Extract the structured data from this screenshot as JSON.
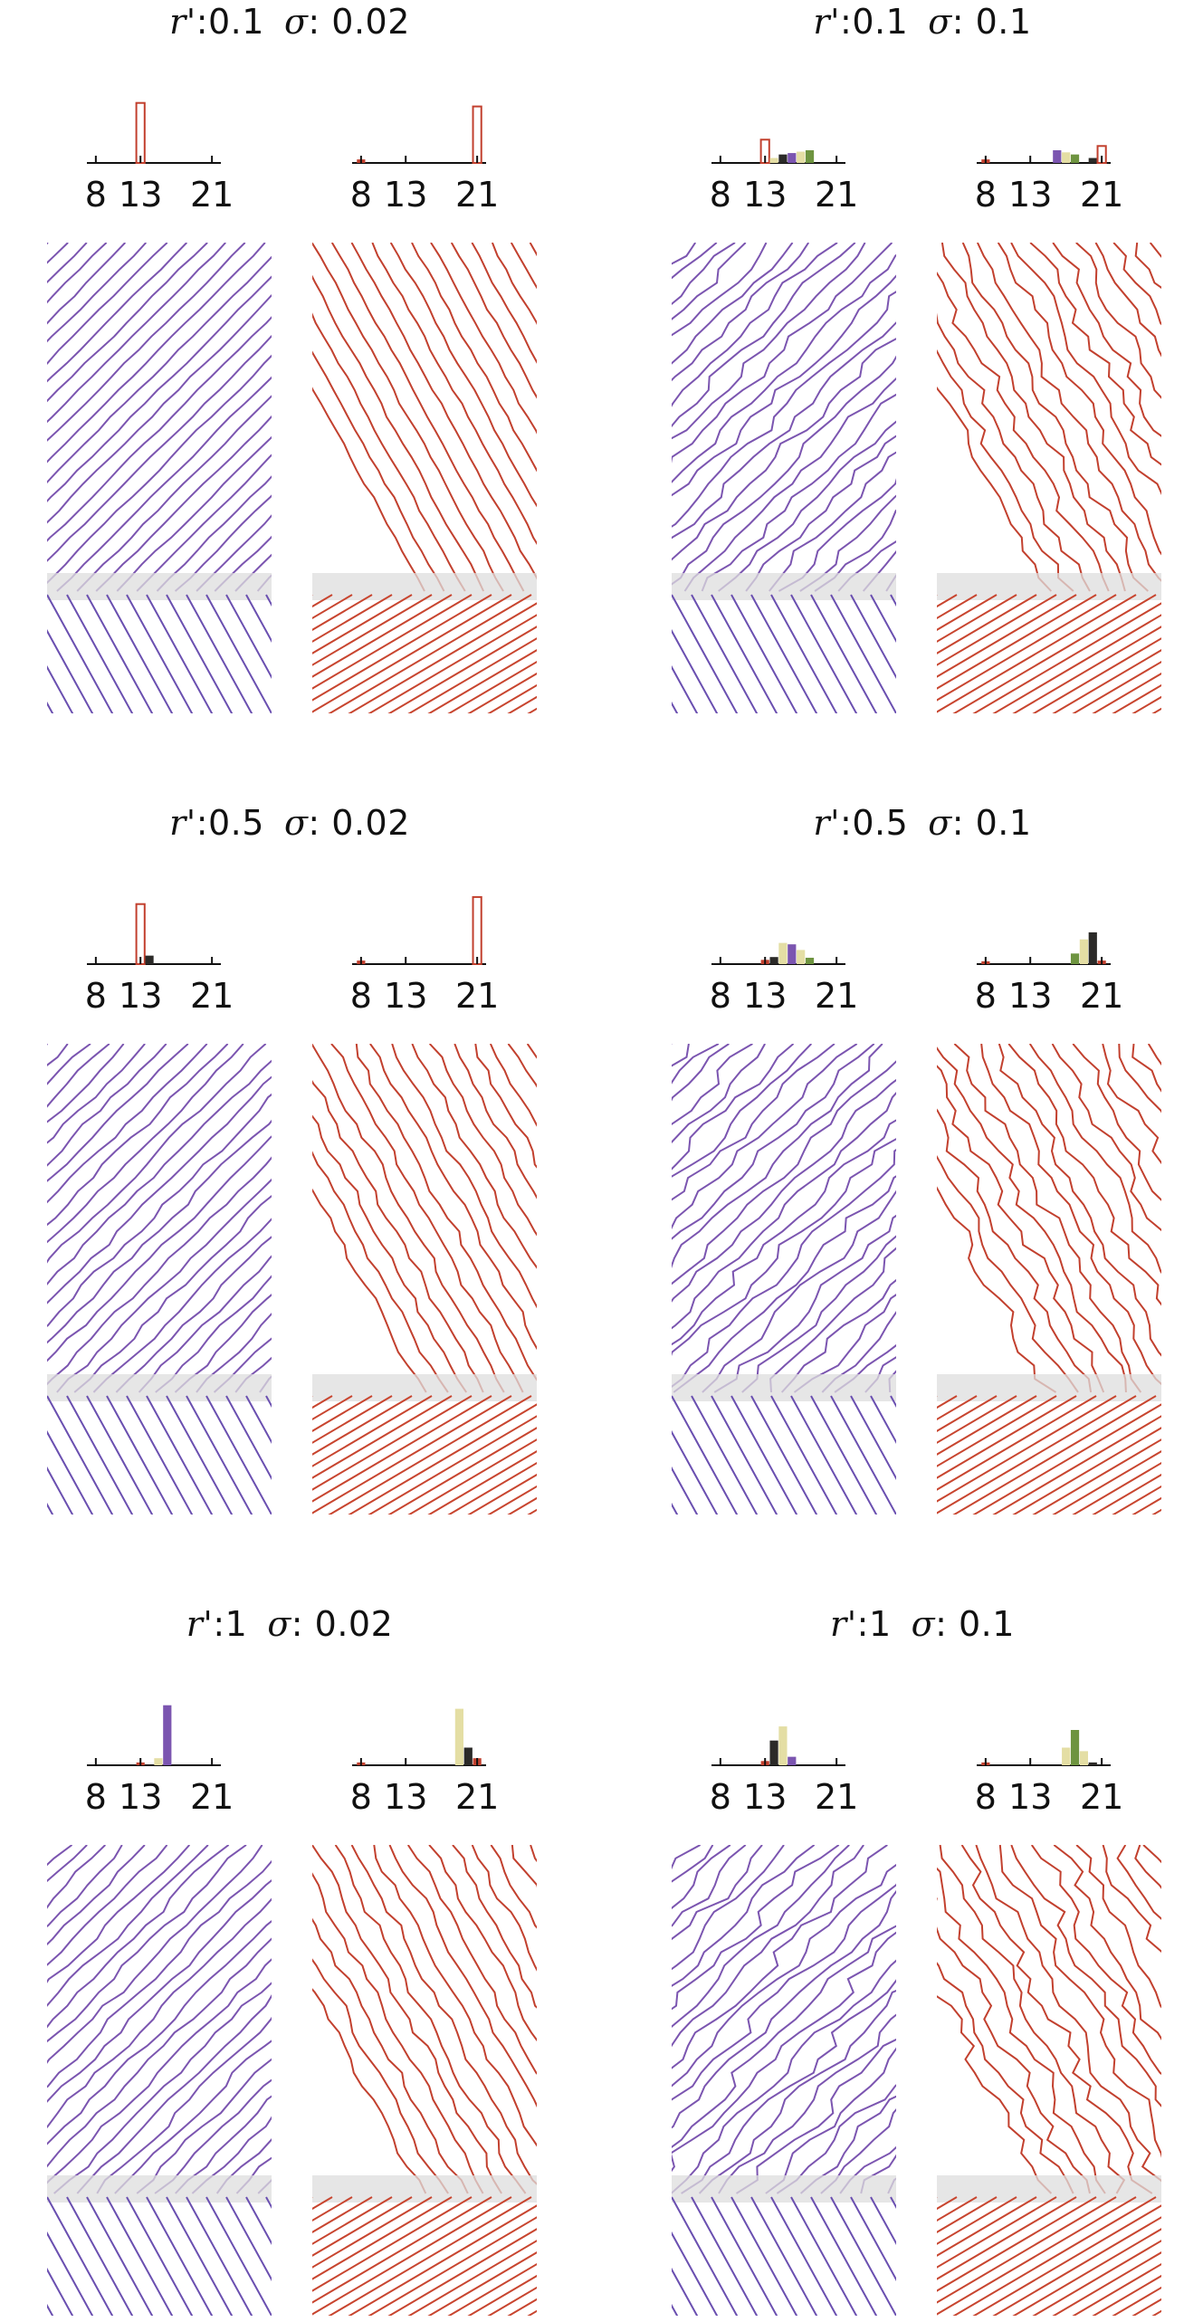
{
  "figure": {
    "colors": {
      "purple": "#7b55b0",
      "red": "#c2402e",
      "cream": "#e4dea4",
      "dark": "#2b2a28",
      "green": "#6e9440",
      "hatch_blue": "#6a4fb0",
      "hatch_red": "#c8452f",
      "band": "#dddddd"
    },
    "panels": [
      {
        "title": {
          "r_label": "r'",
          "r_value": ":0.1",
          "sigma_label": "σ",
          "sigma_value": ": 0.02"
        },
        "histograms": [
          {
            "ticks": [
              "8",
              "13",
              "21"
            ],
            "bars": [
              {
                "x": 13,
                "h": 0.85,
                "color": "red",
                "outline": true
              }
            ]
          },
          {
            "ticks": [
              "8",
              "13",
              "21"
            ],
            "bars": [
              {
                "x": 8,
                "h": 0.05,
                "color": "red"
              },
              {
                "x": 21,
                "h": 0.8,
                "color": "red",
                "outline": true
              }
            ]
          }
        ],
        "patterns": {
          "wobble": 0.02
        }
      },
      {
        "title": {
          "r_label": "r'",
          "r_value": ":0.1",
          "sigma_label": "σ",
          "sigma_value": ": 0.1"
        },
        "histograms": [
          {
            "ticks": [
              "8",
              "13",
              "21"
            ],
            "bars": [
              {
                "x": 13,
                "h": 0.33,
                "color": "red",
                "outline": true
              },
              {
                "x": 14,
                "h": 0.07,
                "color": "cream"
              },
              {
                "x": 15,
                "h": 0.12,
                "color": "dark"
              },
              {
                "x": 16,
                "h": 0.14,
                "color": "purple"
              },
              {
                "x": 17,
                "h": 0.16,
                "color": "cream"
              },
              {
                "x": 18,
                "h": 0.18,
                "color": "green"
              }
            ]
          },
          {
            "ticks": [
              "8",
              "13",
              "21"
            ],
            "bars": [
              {
                "x": 8,
                "h": 0.05,
                "color": "red"
              },
              {
                "x": 16,
                "h": 0.18,
                "color": "purple"
              },
              {
                "x": 17,
                "h": 0.15,
                "color": "cream"
              },
              {
                "x": 18,
                "h": 0.12,
                "color": "green"
              },
              {
                "x": 20,
                "h": 0.07,
                "color": "dark"
              },
              {
                "x": 21,
                "h": 0.24,
                "color": "red",
                "outline": true
              }
            ]
          }
        ],
        "patterns": {
          "wobble": 0.1
        }
      },
      {
        "title": {
          "r_label": "r'",
          "r_value": ":0.5",
          "sigma_label": "σ",
          "sigma_value": ": 0.02"
        },
        "histograms": [
          {
            "ticks": [
              "8",
              "13",
              "21"
            ],
            "bars": [
              {
                "x": 13,
                "h": 0.85,
                "color": "red",
                "outline": true
              },
              {
                "x": 14,
                "h": 0.12,
                "color": "dark"
              }
            ]
          },
          {
            "ticks": [
              "8",
              "13",
              "21"
            ],
            "bars": [
              {
                "x": 8,
                "h": 0.05,
                "color": "red"
              },
              {
                "x": 21,
                "h": 0.95,
                "color": "red",
                "outline": true
              }
            ]
          }
        ],
        "patterns": {
          "wobble": 0.05
        }
      },
      {
        "title": {
          "r_label": "r'",
          "r_value": ":0.5",
          "sigma_label": "σ",
          "sigma_value": ": 0.1"
        },
        "histograms": [
          {
            "ticks": [
              "8",
              "13",
              "21"
            ],
            "bars": [
              {
                "x": 13,
                "h": 0.06,
                "color": "red"
              },
              {
                "x": 14,
                "h": 0.1,
                "color": "dark"
              },
              {
                "x": 15,
                "h": 0.3,
                "color": "cream"
              },
              {
                "x": 16,
                "h": 0.28,
                "color": "purple"
              },
              {
                "x": 17,
                "h": 0.2,
                "color": "cream"
              },
              {
                "x": 18,
                "h": 0.09,
                "color": "green"
              }
            ]
          },
          {
            "ticks": [
              "8",
              "13",
              "21"
            ],
            "bars": [
              {
                "x": 8,
                "h": 0.04,
                "color": "red"
              },
              {
                "x": 18,
                "h": 0.15,
                "color": "green"
              },
              {
                "x": 19,
                "h": 0.35,
                "color": "cream"
              },
              {
                "x": 20,
                "h": 0.45,
                "color": "dark"
              },
              {
                "x": 21,
                "h": 0.05,
                "color": "red"
              }
            ]
          }
        ],
        "patterns": {
          "wobble": 0.12
        }
      },
      {
        "title": {
          "r_label": "r'",
          "r_value": ":1",
          "sigma_label": "σ",
          "sigma_value": ": 0.02"
        },
        "histograms": [
          {
            "ticks": [
              "8",
              "13",
              "21"
            ],
            "bars": [
              {
                "x": 13,
                "h": 0.04,
                "color": "red"
              },
              {
                "x": 15,
                "h": 0.1,
                "color": "cream"
              },
              {
                "x": 16,
                "h": 0.85,
                "color": "purple"
              }
            ]
          },
          {
            "ticks": [
              "8",
              "13",
              "21"
            ],
            "bars": [
              {
                "x": 8,
                "h": 0.04,
                "color": "red"
              },
              {
                "x": 19,
                "h": 0.8,
                "color": "cream"
              },
              {
                "x": 20,
                "h": 0.25,
                "color": "dark"
              },
              {
                "x": 21,
                "h": 0.1,
                "color": "red"
              }
            ]
          }
        ],
        "patterns": {
          "wobble": 0.06
        }
      },
      {
        "title": {
          "r_label": "r'",
          "r_value": ":1",
          "sigma_label": "σ",
          "sigma_value": ": 0.1"
        },
        "histograms": [
          {
            "ticks": [
              "8",
              "13",
              "21"
            ],
            "bars": [
              {
                "x": 13,
                "h": 0.06,
                "color": "red"
              },
              {
                "x": 14,
                "h": 0.35,
                "color": "dark"
              },
              {
                "x": 15,
                "h": 0.55,
                "color": "cream"
              },
              {
                "x": 16,
                "h": 0.12,
                "color": "purple"
              }
            ]
          },
          {
            "ticks": [
              "8",
              "13",
              "21"
            ],
            "bars": [
              {
                "x": 8,
                "h": 0.04,
                "color": "red"
              },
              {
                "x": 17,
                "h": 0.25,
                "color": "cream"
              },
              {
                "x": 18,
                "h": 0.5,
                "color": "green"
              },
              {
                "x": 19,
                "h": 0.2,
                "color": "cream"
              },
              {
                "x": 20,
                "h": 0.04,
                "color": "dark"
              }
            ]
          }
        ],
        "patterns": {
          "wobble": 0.14
        }
      }
    ]
  },
  "chart_data": {
    "type": "bar",
    "xlabel": "",
    "ylabel": "",
    "x_ticks": [
      8,
      13,
      21
    ],
    "xlim": [
      7,
      22
    ],
    "panels": [
      {
        "r_prime": 0.1,
        "sigma": 0.02,
        "left_hist": {
          "x": [
            13
          ],
          "values": [
            0.85
          ]
        },
        "right_hist": {
          "x": [
            8,
            21
          ],
          "values": [
            0.05,
            0.8
          ]
        }
      },
      {
        "r_prime": 0.1,
        "sigma": 0.1,
        "left_hist": {
          "x": [
            13,
            14,
            15,
            16,
            17,
            18
          ],
          "values": [
            0.33,
            0.07,
            0.12,
            0.14,
            0.16,
            0.18
          ]
        },
        "right_hist": {
          "x": [
            8,
            16,
            17,
            18,
            20,
            21
          ],
          "values": [
            0.05,
            0.18,
            0.15,
            0.12,
            0.07,
            0.24
          ]
        }
      },
      {
        "r_prime": 0.5,
        "sigma": 0.02,
        "left_hist": {
          "x": [
            13,
            14
          ],
          "values": [
            0.85,
            0.12
          ]
        },
        "right_hist": {
          "x": [
            8,
            21
          ],
          "values": [
            0.05,
            0.95
          ]
        }
      },
      {
        "r_prime": 0.5,
        "sigma": 0.1,
        "left_hist": {
          "x": [
            13,
            14,
            15,
            16,
            17,
            18
          ],
          "values": [
            0.06,
            0.1,
            0.3,
            0.28,
            0.2,
            0.09
          ]
        },
        "right_hist": {
          "x": [
            8,
            18,
            19,
            20,
            21
          ],
          "values": [
            0.04,
            0.15,
            0.35,
            0.45,
            0.05
          ]
        }
      },
      {
        "r_prime": 1,
        "sigma": 0.02,
        "left_hist": {
          "x": [
            13,
            15,
            16
          ],
          "values": [
            0.04,
            0.1,
            0.85
          ]
        },
        "right_hist": {
          "x": [
            8,
            19,
            20,
            21
          ],
          "values": [
            0.04,
            0.8,
            0.25,
            0.1
          ]
        }
      },
      {
        "r_prime": 1,
        "sigma": 0.1,
        "left_hist": {
          "x": [
            13,
            14,
            15,
            16
          ],
          "values": [
            0.06,
            0.35,
            0.55,
            0.12
          ]
        },
        "right_hist": {
          "x": [
            8,
            17,
            18,
            19,
            20
          ],
          "values": [
            0.04,
            0.25,
            0.5,
            0.2,
            0.04
          ]
        }
      }
    ]
  }
}
